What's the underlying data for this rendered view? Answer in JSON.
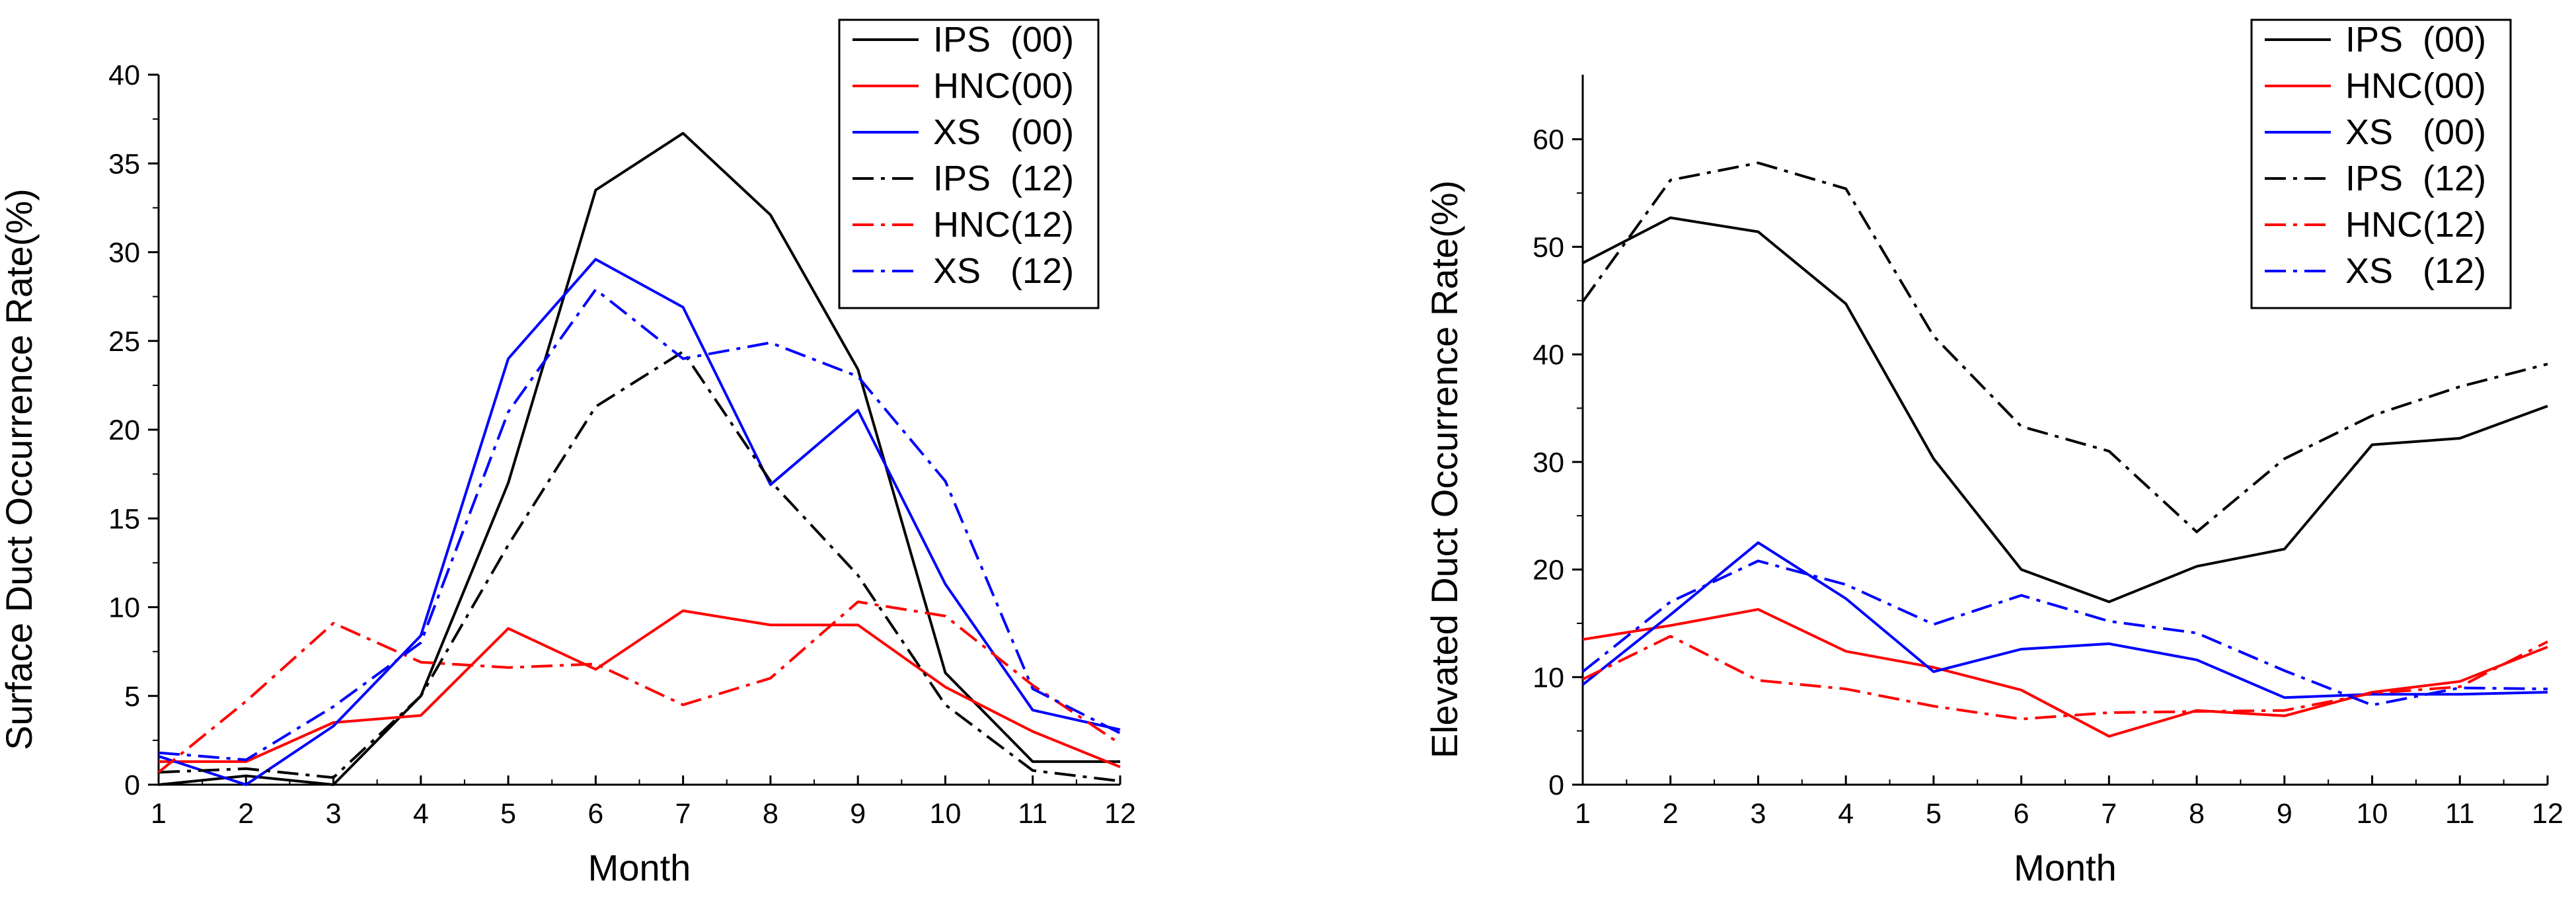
{
  "chart_data": [
    {
      "type": "line",
      "title": "",
      "xlabel": "Month",
      "ylabel": "Surface Duct Occurrence Rate(%)",
      "xlim": [
        1,
        12
      ],
      "ylim": [
        0,
        40
      ],
      "xticks": [
        1,
        2,
        3,
        4,
        5,
        6,
        7,
        8,
        9,
        10,
        11,
        12
      ],
      "yticks": [
        0,
        5,
        10,
        15,
        20,
        25,
        30,
        35,
        40
      ],
      "grid": false,
      "legend_position": "top-right",
      "x": [
        1,
        2,
        3,
        4,
        5,
        6,
        7,
        8,
        9,
        10,
        11,
        12
      ],
      "series": [
        {
          "name": "IPS  (00)",
          "color": "#000000",
          "dash": "solid",
          "values": [
            0.0,
            0.5,
            0.0,
            5.0,
            17.0,
            33.5,
            36.7,
            32.1,
            23.4,
            6.3,
            1.3,
            1.3
          ]
        },
        {
          "name": "HNC(00)",
          "color": "#ff0000",
          "dash": "solid",
          "values": [
            1.3,
            1.3,
            3.5,
            3.9,
            8.8,
            6.5,
            9.8,
            9.0,
            9.0,
            5.5,
            3.0,
            1.0
          ]
        },
        {
          "name": "XS   (00)",
          "color": "#0000ff",
          "dash": "solid",
          "values": [
            1.6,
            0.0,
            3.3,
            8.4,
            24.0,
            29.6,
            26.9,
            16.9,
            21.1,
            11.3,
            4.2,
            3.1
          ]
        },
        {
          "name": "IPS  (12)",
          "color": "#000000",
          "dash": "dashdot",
          "values": [
            0.7,
            0.9,
            0.4,
            5.0,
            13.5,
            21.3,
            24.4,
            17.1,
            11.8,
            4.5,
            0.8,
            0.2
          ]
        },
        {
          "name": "HNC(12)",
          "color": "#ff0000",
          "dash": "dashdot",
          "values": [
            0.7,
            4.7,
            9.1,
            6.9,
            6.6,
            6.8,
            4.5,
            6.0,
            10.3,
            9.5,
            5.6,
            2.3
          ]
        },
        {
          "name": "XS   (12)",
          "color": "#0000ff",
          "dash": "dashdot",
          "values": [
            1.8,
            1.4,
            4.4,
            8.0,
            21.0,
            27.9,
            24.0,
            24.9,
            23.0,
            17.1,
            5.4,
            2.9
          ]
        }
      ]
    },
    {
      "type": "line",
      "title": "",
      "xlabel": "Month",
      "ylabel": "Elevated Duct Occurrence Rate(%)",
      "xlim": [
        1,
        12
      ],
      "ylim": [
        0,
        66
      ],
      "xticks": [
        1,
        2,
        3,
        4,
        5,
        6,
        7,
        8,
        9,
        10,
        11,
        12
      ],
      "yticks": [
        0,
        10,
        20,
        30,
        40,
        50,
        60
      ],
      "grid": false,
      "legend_position": "top-right",
      "x": [
        1,
        2,
        3,
        4,
        5,
        6,
        7,
        8,
        9,
        10,
        11,
        12
      ],
      "series": [
        {
          "name": "IPS  (00)",
          "color": "#000000",
          "dash": "solid",
          "values": [
            48.5,
            52.7,
            51.4,
            44.7,
            30.3,
            20.0,
            17.0,
            20.3,
            21.9,
            31.6,
            32.2,
            35.2
          ]
        },
        {
          "name": "HNC(00)",
          "color": "#ff0000",
          "dash": "solid",
          "values": [
            13.5,
            14.8,
            16.3,
            12.4,
            10.9,
            8.8,
            4.5,
            6.9,
            6.4,
            8.6,
            9.6,
            12.8
          ]
        },
        {
          "name": "XS   (00)",
          "color": "#0000ff",
          "dash": "solid",
          "values": [
            9.3,
            15.8,
            22.5,
            17.3,
            10.5,
            12.6,
            13.1,
            11.6,
            8.1,
            8.4,
            8.4,
            8.6
          ]
        },
        {
          "name": "IPS  (12)",
          "color": "#000000",
          "dash": "dashdot",
          "values": [
            44.9,
            56.2,
            57.8,
            55.4,
            41.7,
            33.3,
            31.0,
            23.5,
            30.3,
            34.3,
            37.0,
            39.1
          ]
        },
        {
          "name": "HNC(12)",
          "color": "#ff0000",
          "dash": "dashdot",
          "values": [
            9.8,
            13.8,
            9.7,
            8.9,
            7.3,
            6.1,
            6.7,
            6.8,
            6.9,
            8.5,
            9.1,
            13.3
          ]
        },
        {
          "name": "XS   (12)",
          "color": "#0000ff",
          "dash": "dashdot",
          "values": [
            10.5,
            17.0,
            20.8,
            18.6,
            14.9,
            17.6,
            15.2,
            14.1,
            10.6,
            7.4,
            9.0,
            8.9
          ]
        }
      ]
    }
  ]
}
